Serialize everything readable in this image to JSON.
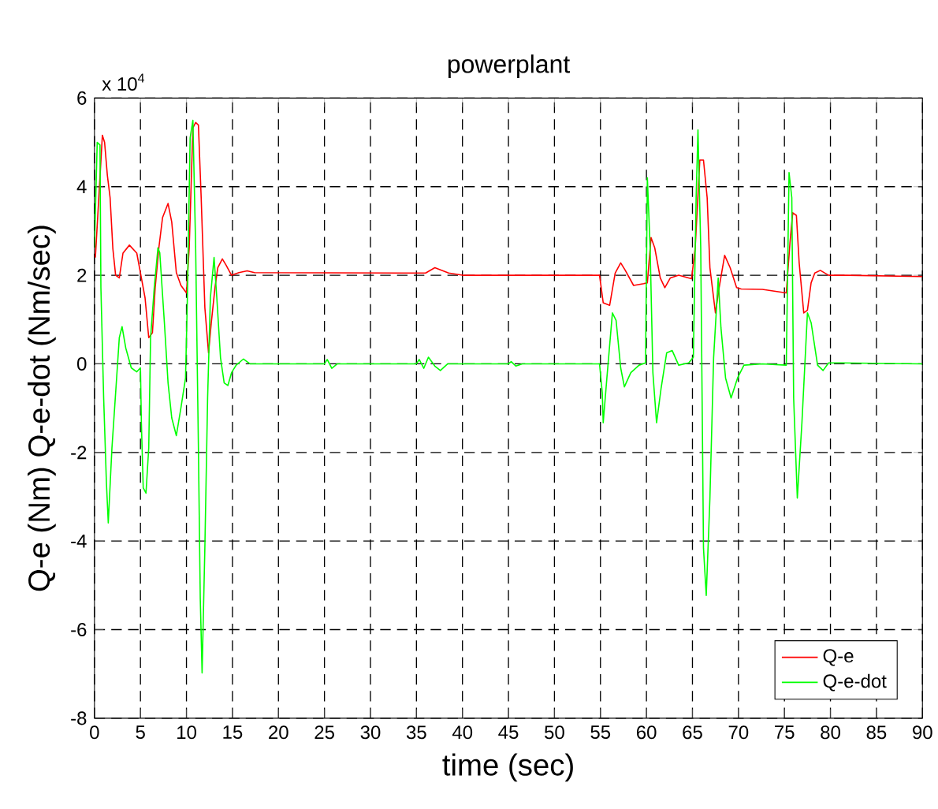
{
  "chart_data": {
    "type": "line",
    "title": "powerplant",
    "xlabel": "time (sec)",
    "ylabel": "Q-e (Nm) Q-e-dot (Nm/sec)",
    "annotations": [
      "x 10$^{4}$"
    ],
    "xlim": [
      0,
      90
    ],
    "xticks": [
      0,
      5,
      10,
      15,
      20,
      25,
      30,
      35,
      40,
      45,
      50,
      55,
      60,
      65,
      70,
      75,
      80,
      85,
      90
    ],
    "ylim": [
      -8,
      6
    ],
    "yticks": [
      -8,
      -6,
      -4,
      -2,
      0,
      2,
      4,
      6
    ],
    "grid": true,
    "legend": "bottom right",
    "line_style": "solid",
    "marker": "none",
    "series": [
      {
        "name": "Q-e",
        "color": "#ff0000",
        "x": [
          0.1,
          0.86,
          1.1,
          1.4,
          1.7,
          2.0,
          2.3,
          2.7,
          3.1,
          3.8,
          4.6,
          5.1,
          5.5,
          5.9,
          6.3,
          6.6,
          7.0,
          7.4,
          8.0,
          8.4,
          8.9,
          9.4,
          10.0,
          10.3,
          10.7,
          11.0,
          11.3,
          11.6,
          12.0,
          12.4,
          12.7,
          13.1,
          13.4,
          13.9,
          14.3,
          14.9,
          15.7,
          16.6,
          17.4,
          36.0,
          37.0,
          38.5,
          40.0,
          54.9,
          55.3,
          56.0,
          56.6,
          57.2,
          57.7,
          58.6,
          59.7,
          60.1,
          60.5,
          60.9,
          61.5,
          62.0,
          62.6,
          63.5,
          64.9,
          65.3,
          65.8,
          66.2,
          66.6,
          66.9,
          67.5,
          67.9,
          68.5,
          69.1,
          69.8,
          70.3,
          72.6,
          75.2,
          75.6,
          75.9,
          76.3,
          76.6,
          77.1,
          77.5,
          77.9,
          78.3,
          78.9,
          79.8,
          81.8,
          90
        ],
        "values": [
          2.4,
          5.16,
          5.0,
          4.26,
          3.75,
          2.6,
          2.0,
          1.94,
          2.5,
          2.68,
          2.5,
          1.94,
          1.49,
          0.59,
          0.7,
          1.72,
          2.62,
          3.3,
          3.62,
          3.2,
          2.06,
          1.77,
          1.6,
          2.62,
          5.33,
          5.45,
          5.39,
          3.75,
          1.27,
          0.25,
          0.93,
          1.72,
          2.17,
          2.37,
          2.23,
          2.0,
          2.06,
          2.1,
          2.06,
          2.05,
          2.17,
          2.05,
          2.0,
          2.0,
          1.38,
          1.32,
          2.05,
          2.28,
          2.11,
          1.77,
          1.81,
          1.83,
          2.85,
          2.62,
          1.94,
          1.72,
          1.94,
          2.0,
          1.92,
          2.62,
          4.6,
          4.6,
          3.75,
          2.17,
          1.15,
          1.72,
          2.45,
          2.17,
          1.72,
          1.69,
          1.68,
          1.6,
          2.73,
          3.41,
          3.35,
          2.28,
          1.15,
          1.21,
          1.83,
          2.05,
          2.11,
          2.0,
          2.0,
          1.97
        ]
      },
      {
        "name": "Q-e-dot",
        "color": "#00ff00",
        "x": [
          0,
          0.3,
          0.6,
          0.7,
          1.0,
          1.3,
          1.5,
          1.9,
          2.3,
          2.7,
          3.0,
          3.4,
          4.0,
          4.6,
          5.0,
          5.1,
          5.3,
          5.6,
          5.9,
          6.1,
          6.5,
          6.9,
          7.1,
          7.6,
          8.0,
          8.4,
          8.9,
          9.4,
          9.9,
          10.1,
          10.4,
          10.7,
          11.0,
          11.3,
          11.5,
          11.7,
          12.0,
          12.3,
          12.6,
          13.0,
          13.3,
          13.7,
          14.1,
          14.5,
          14.9,
          15.4,
          16.2,
          16.9,
          25.0,
          25.3,
          25.8,
          26.4,
          35.0,
          35.3,
          35.8,
          36.3,
          37.0,
          37.6,
          38.4,
          45.0,
          45.3,
          45.8,
          46.5,
          54.9,
          55.2,
          55.3,
          55.7,
          56.3,
          56.7,
          57.2,
          57.6,
          58.3,
          59.2,
          59.9,
          60.1,
          60.4,
          60.7,
          61.1,
          61.6,
          62.2,
          62.8,
          63.5,
          64.6,
          65.1,
          65.4,
          65.6,
          65.9,
          66.2,
          66.5,
          66.9,
          67.3,
          67.8,
          68.1,
          68.6,
          69.2,
          69.9,
          70.6,
          72.6,
          75.2,
          75.5,
          75.8,
          76.0,
          76.4,
          76.9,
          77.5,
          77.9,
          78.6,
          79.2,
          79.8,
          81.2,
          90
        ],
        "values": [
          2.62,
          5.0,
          4.94,
          1.72,
          -0.77,
          -2.69,
          -3.59,
          -1.9,
          -0.66,
          0.59,
          0.84,
          0.36,
          -0.09,
          -0.18,
          -0.09,
          -1.33,
          -2.8,
          -2.92,
          -1.9,
          0.59,
          1.72,
          2.62,
          2.51,
          0.93,
          -0.43,
          -1.22,
          -1.62,
          -0.99,
          -0.32,
          1.49,
          5.1,
          5.5,
          2.62,
          -1.9,
          -5.29,
          -6.98,
          -4.16,
          -0.77,
          1.49,
          2.4,
          1.49,
          0.14,
          -0.43,
          -0.49,
          -0.2,
          -0.03,
          0.11,
          0,
          0,
          0.1,
          -0.1,
          0,
          0,
          0.1,
          -0.1,
          0.15,
          -0.05,
          -0.15,
          0,
          0,
          0.05,
          -0.05,
          0,
          0,
          -0.66,
          -1.33,
          -0.32,
          1.15,
          0.98,
          -0.09,
          -0.52,
          -0.2,
          -0.03,
          0.02,
          4.2,
          2.62,
          -0.2,
          -1.33,
          -0.54,
          0.25,
          0.3,
          -0.03,
          0.02,
          0.15,
          3.75,
          5.28,
          2.62,
          -4.16,
          -5.23,
          -3.03,
          0.13,
          1.94,
          0.81,
          -0.32,
          -0.77,
          -0.32,
          -0.03,
          0,
          -0.03,
          4.32,
          3.75,
          -0.77,
          -3.03,
          -1.33,
          1.15,
          0.93,
          -0.03,
          -0.15,
          0.02,
          0.02,
          0
        ]
      }
    ]
  }
}
